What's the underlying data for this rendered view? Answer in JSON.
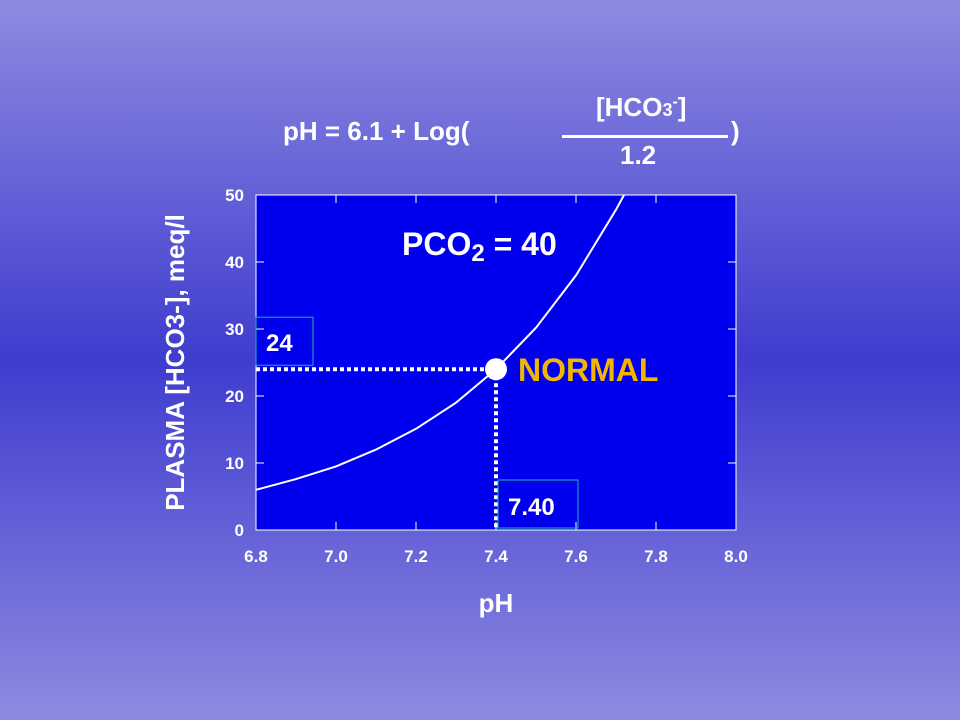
{
  "equation": {
    "lhs": "pH  =  6.1    +  Log(",
    "numerator": "[HCO",
    "numerator_sub": "3",
    "numerator_sup": "-",
    "numerator_close": "]",
    "denominator": "1.2",
    "close": ")"
  },
  "chart_data": {
    "type": "line",
    "xlabel": "pH",
    "ylabel": "PLASMA  [HCO3-],  meq/l",
    "xlim": [
      6.8,
      8.0
    ],
    "ylim": [
      0,
      50
    ],
    "xticks": [
      "6.8",
      "7.0",
      "7.2",
      "7.4",
      "7.6",
      "7.8",
      "8.0"
    ],
    "yticks": [
      "0",
      "10",
      "20",
      "30",
      "40",
      "50"
    ],
    "series": [
      {
        "name": "PCO2 = 40",
        "x": [
          6.8,
          6.9,
          7.0,
          7.1,
          7.2,
          7.3,
          7.4,
          7.5,
          7.6,
          7.7,
          7.72
        ],
        "y": [
          6.0,
          7.6,
          9.5,
          12.0,
          15.1,
          19.0,
          24.0,
          30.2,
          38.0,
          47.8,
          50.0
        ]
      }
    ],
    "curve_label": {
      "text": "PCO",
      "sub": "2",
      "rest": " = 40"
    },
    "normal_point": {
      "x": 7.4,
      "y": 24,
      "label": "NORMAL"
    },
    "x_marker_label": "7.40",
    "y_marker_label": "24",
    "colors": {
      "plot_bg": "#0000ee",
      "curve": "#ffffff",
      "label_yellow": "#f2b600",
      "marker_box": "#19b7b0"
    }
  }
}
